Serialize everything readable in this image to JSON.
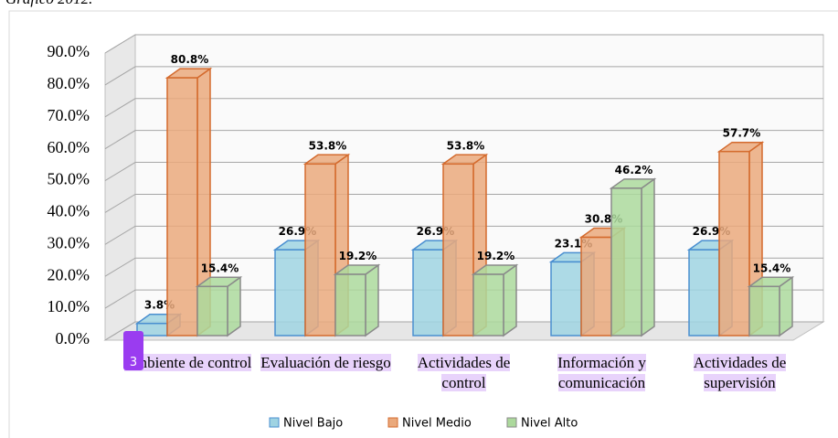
{
  "title": "Gráfico 2012.",
  "badge": "3",
  "chart_data": {
    "type": "bar3d",
    "categories": [
      "Ambiente de control",
      "Evaluación de riesgo",
      "Actividades de control",
      "Información y comunicación",
      "Actividades de supervisión"
    ],
    "series": [
      {
        "name": "Nivel Bajo",
        "color": "#9fd3e2",
        "edge": "#4a8fd0",
        "values": [
          3.8,
          26.9,
          26.9,
          23.1,
          26.9
        ],
        "value_labels": [
          "3.8%",
          "26.9%",
          "26.9%",
          "23.1%",
          "26.9%"
        ]
      },
      {
        "name": "Nivel Medio",
        "color": "#eaa97c",
        "edge": "#d46b2e",
        "values": [
          80.8,
          53.8,
          53.8,
          30.8,
          57.7
        ],
        "value_labels": [
          "80.8%",
          "53.8%",
          "53.8%",
          "30.8%",
          "57.7%"
        ]
      },
      {
        "name": "Nivel Alto",
        "color": "#acd99c",
        "edge": "#8a8a8a",
        "values": [
          15.4,
          19.2,
          19.2,
          46.2,
          15.4
        ],
        "value_labels": [
          "15.4%",
          "19.2%",
          "19.2%",
          "46.2%",
          "15.4%"
        ]
      }
    ],
    "ylim": [
      0,
      90
    ],
    "yticks": [
      {
        "value": 0,
        "label": "0.0%"
      },
      {
        "value": 10,
        "label": "10.0%"
      },
      {
        "value": 20,
        "label": "20.0%"
      },
      {
        "value": 30,
        "label": "30.0%"
      },
      {
        "value": 40,
        "label": "40.0%"
      },
      {
        "value": 50,
        "label": "50.0%"
      },
      {
        "value": 60,
        "label": "60.0%"
      },
      {
        "value": 70,
        "label": "70.0%"
      },
      {
        "value": 80,
        "label": "80.0%"
      },
      {
        "value": 90,
        "label": "90.0%"
      }
    ],
    "grid": true,
    "legend": "bottom"
  }
}
